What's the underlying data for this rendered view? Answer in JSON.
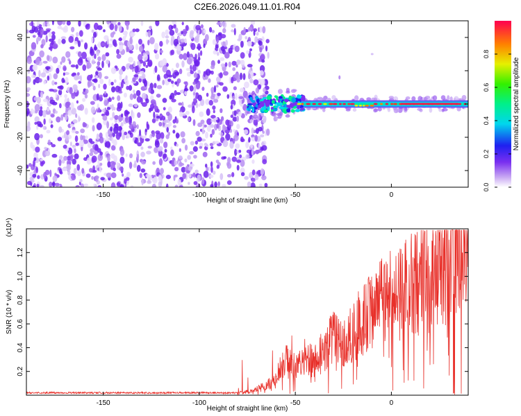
{
  "figure_title": "C2E6.2026.049.11.01.R04",
  "colors": {
    "snr_line": "#e8302a",
    "axis": "#000000",
    "scatter_hue": "#7b2ff0"
  },
  "chart_data": [
    {
      "type": "heatmap",
      "title": "C2E6.2026.049.11.01.R04",
      "xlabel": "Height of straight line (km)",
      "ylabel": "Frequency (Hz)",
      "xlim": [
        -190,
        40
      ],
      "ylim": [
        -50,
        50
      ],
      "x_ticks": [
        -150,
        -100,
        -50,
        0
      ],
      "y_ticks": [
        -40,
        -20,
        0,
        20,
        40
      ],
      "colorbar": {
        "label": "Normalized spectral amplitude",
        "range": [
          0.0,
          1.0
        ],
        "ticks": [
          0.0,
          0.2,
          0.4,
          0.6,
          0.8
        ]
      },
      "description_regions": {
        "noise_region_x": [
          -190,
          -72
        ],
        "signal_band_x": [
          -75,
          40
        ],
        "signal_center_freq": 0
      }
    },
    {
      "type": "line",
      "xlabel": "Height of straight line (km)",
      "ylabel": "SNR (10 * v/v)",
      "y_multiplier": "(x10⁴)",
      "xlim": [
        -190,
        40
      ],
      "ylim": [
        0,
        1.4
      ],
      "x_ticks": [
        -150,
        -100,
        -50,
        0
      ],
      "y_ticks": [
        0.2,
        0.4,
        0.6,
        0.8,
        1.0,
        1.2
      ],
      "series": [
        {
          "name": "SNR",
          "trend_points": [
            [
              -190,
              0.02
            ],
            [
              -80,
              0.02
            ],
            [
              -72,
              0.04
            ],
            [
              -62,
              0.12
            ],
            [
              -55,
              0.32
            ],
            [
              -50,
              0.25
            ],
            [
              -45,
              0.35
            ],
            [
              -40,
              0.3
            ],
            [
              -30,
              0.55
            ],
            [
              -25,
              0.45
            ],
            [
              -15,
              0.7
            ],
            [
              -5,
              0.85
            ],
            [
              5,
              0.95
            ],
            [
              15,
              1.05
            ],
            [
              25,
              1.2
            ],
            [
              40,
              1.3
            ]
          ]
        }
      ]
    }
  ]
}
